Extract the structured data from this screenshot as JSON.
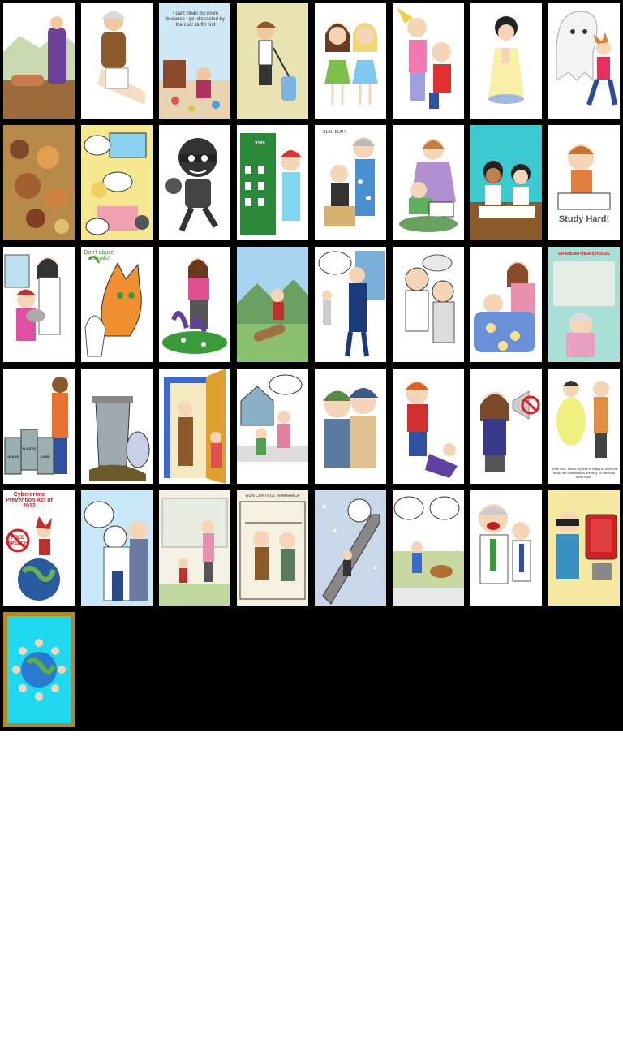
{
  "tiles": [
    {
      "icon": "praying-man-icon"
    },
    {
      "icon": "old-man-sitting-icon"
    },
    {
      "icon": "messy-room-icon",
      "caption": "I cant clean my room because I get distracted by the cool stuff I find"
    },
    {
      "icon": "girl-vacuum-icon"
    },
    {
      "icon": "two-girls-holding-hands-icon"
    },
    {
      "icon": "kids-fighting-icon"
    },
    {
      "icon": "child-praying-icon"
    },
    {
      "icon": "ghost-chasing-boy-icon"
    },
    {
      "icon": "food-pile-icon"
    },
    {
      "icon": "comic-kitchen-icon"
    },
    {
      "icon": "burglar-icon"
    },
    {
      "icon": "jobs-building-icon",
      "label": "JOBS"
    },
    {
      "icon": "nagging-grandma-icon",
      "label": "BLAH BLAH"
    },
    {
      "icon": "mother-reading-icon"
    },
    {
      "icon": "kids-studying-icon"
    },
    {
      "icon": "study-hard-boy-icon",
      "label": "Study Hard!"
    },
    {
      "icon": "veterinarian-icon"
    },
    {
      "icon": "dont-abuse-animals-icon",
      "label": "Don't abuse animals!"
    },
    {
      "icon": "gardening-woman-icon"
    },
    {
      "icon": "tree-cutting-icon"
    },
    {
      "icon": "police-comic-icon"
    },
    {
      "icon": "doctors-comic-icon"
    },
    {
      "icon": "mother-sick-child-icon"
    },
    {
      "icon": "grandmother-poem-icon",
      "label": "GRANDMOTHER'S HOUSE"
    },
    {
      "icon": "recycling-bins-icon",
      "labels": [
        "GLASS",
        "PLASTIC",
        "CANS"
      ]
    },
    {
      "icon": "garbage-can-icon"
    },
    {
      "icon": "open-door-icon"
    },
    {
      "icon": "neighbor-comic-icon"
    },
    {
      "icon": "two-boys-hugging-icon"
    },
    {
      "icon": "bully-boy-icon"
    },
    {
      "icon": "no-loud-noise-icon"
    },
    {
      "icon": "pregnant-woman-doctor-icon",
      "caption": "\"Yeah Doc, I think my wife is ready to have the baby, her contractions are only 30 seconds apart now.\""
    },
    {
      "icon": "free-speech-globe-icon",
      "label": "Cybercrime Prevention Act of 2012",
      "stamp": "FREE SPEECH"
    },
    {
      "icon": "politicians-comic-icon"
    },
    {
      "icon": "mother-child-walking-icon"
    },
    {
      "icon": "gun-control-comic-icon",
      "label": "GUN CONTROL IN AMERICA"
    },
    {
      "icon": "escalator-snow-icon"
    },
    {
      "icon": "dog-leash-comic-icon"
    },
    {
      "icon": "shouting-men-icon"
    },
    {
      "icon": "hacker-computer-icon"
    },
    {
      "icon": "children-around-globe-icon"
    }
  ]
}
